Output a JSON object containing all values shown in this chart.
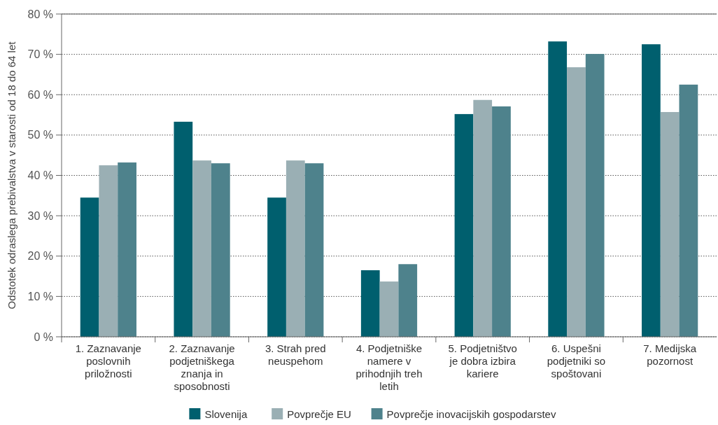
{
  "chart_data": {
    "type": "bar",
    "ylabel": "Odstotek odraslega prebivalstva v starosti od 18 do 64 let",
    "categories": [
      "1. Zaznavanje poslovnih priložnosti",
      "2. Zaznavanje podjetniškega znanja in sposobnosti",
      "3. Strah pred neuspehom",
      "4. Podjetniške namere v prihodnjih treh letih",
      "5. Podjetništvo je dobra izbira kariere",
      "6. Uspešni podjetniki so spoštovani",
      "7. Medijska pozornost"
    ],
    "series": [
      {
        "name": "Slovenija",
        "color": "#005f6e",
        "values": [
          34.5,
          53.3,
          34.5,
          16.5,
          55.2,
          73.2,
          72.5
        ]
      },
      {
        "name": "Povprečje EU",
        "color": "#9aafb4",
        "values": [
          42.5,
          43.7,
          43.7,
          13.7,
          58.7,
          66.8,
          55.7
        ]
      },
      {
        "name": "Povprečje inovacijskih gospodarstev",
        "color": "#4e828c",
        "values": [
          43.2,
          43.0,
          43.0,
          18.0,
          57.1,
          70.1,
          62.5
        ]
      }
    ],
    "ylim": [
      0,
      80
    ],
    "yticks": [
      {
        "value": 0,
        "label": "0 %"
      },
      {
        "value": 10,
        "label": "10 %"
      },
      {
        "value": 20,
        "label": "20 %"
      },
      {
        "value": 30,
        "label": "30 %"
      },
      {
        "value": 40,
        "label": "40 %"
      },
      {
        "value": 50,
        "label": "50 %"
      },
      {
        "value": 60,
        "label": "60 %"
      },
      {
        "value": 70,
        "label": "70 %"
      },
      {
        "value": 80,
        "label": "80 %"
      }
    ],
    "grid": "y",
    "legend": "bottom"
  }
}
